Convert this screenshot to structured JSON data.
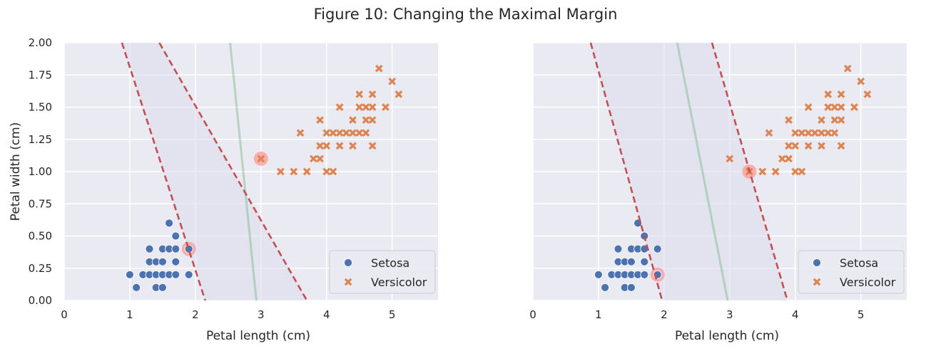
{
  "figure": {
    "title": "Figure 10: Changing the Maximal Margin",
    "colors": {
      "axes_bg": "#eaeaf2",
      "grid": "#ffffff",
      "setosa": "#4c72b0",
      "versicolor": "#dd8452",
      "margin_line": "#c44e52",
      "decision_line": "#55a868",
      "support_vector_ring": "#ff9896"
    }
  },
  "chart_data": [
    {
      "type": "scatter",
      "xlabel": "Petal length (cm)",
      "ylabel": "Petal width (cm)",
      "xlim": [
        0,
        5.7
      ],
      "ylim": [
        0,
        2.0
      ],
      "xticks": [
        "0",
        "1",
        "2",
        "3",
        "4",
        "5"
      ],
      "yticks": [
        "0.00",
        "0.25",
        "0.50",
        "0.75",
        "1.00",
        "1.25",
        "1.50",
        "1.75",
        "2.00"
      ],
      "grid": true,
      "legend_position": "lower-right",
      "legend": [
        "Setosa",
        "Versicolor"
      ],
      "series": [
        {
          "name": "Setosa",
          "marker": "circle",
          "points": [
            [
              1.0,
              0.2
            ],
            [
              1.1,
              0.1
            ],
            [
              1.2,
              0.2
            ],
            [
              1.3,
              0.2
            ],
            [
              1.3,
              0.3
            ],
            [
              1.3,
              0.4
            ],
            [
              1.4,
              0.1
            ],
            [
              1.4,
              0.2
            ],
            [
              1.4,
              0.3
            ],
            [
              1.5,
              0.1
            ],
            [
              1.5,
              0.2
            ],
            [
              1.5,
              0.3
            ],
            [
              1.5,
              0.4
            ],
            [
              1.6,
              0.2
            ],
            [
              1.6,
              0.4
            ],
            [
              1.6,
              0.6
            ],
            [
              1.7,
              0.2
            ],
            [
              1.7,
              0.3
            ],
            [
              1.7,
              0.4
            ],
            [
              1.7,
              0.5
            ],
            [
              1.9,
              0.2
            ],
            [
              1.9,
              0.4
            ]
          ]
        },
        {
          "name": "Versicolor",
          "marker": "x",
          "points": [
            [
              3.0,
              1.1
            ],
            [
              3.3,
              1.0
            ],
            [
              3.5,
              1.0
            ],
            [
              3.6,
              1.3
            ],
            [
              3.7,
              1.0
            ],
            [
              3.8,
              1.1
            ],
            [
              3.9,
              1.1
            ],
            [
              3.9,
              1.2
            ],
            [
              3.9,
              1.4
            ],
            [
              4.0,
              1.0
            ],
            [
              4.0,
              1.2
            ],
            [
              4.0,
              1.3
            ],
            [
              4.1,
              1.0
            ],
            [
              4.1,
              1.3
            ],
            [
              4.2,
              1.2
            ],
            [
              4.2,
              1.3
            ],
            [
              4.2,
              1.5
            ],
            [
              4.3,
              1.3
            ],
            [
              4.4,
              1.2
            ],
            [
              4.4,
              1.3
            ],
            [
              4.4,
              1.4
            ],
            [
              4.5,
              1.3
            ],
            [
              4.5,
              1.5
            ],
            [
              4.5,
              1.6
            ],
            [
              4.6,
              1.3
            ],
            [
              4.6,
              1.4
            ],
            [
              4.6,
              1.5
            ],
            [
              4.7,
              1.2
            ],
            [
              4.7,
              1.4
            ],
            [
              4.7,
              1.5
            ],
            [
              4.7,
              1.6
            ],
            [
              4.8,
              1.8
            ],
            [
              4.9,
              1.5
            ],
            [
              5.0,
              1.7
            ],
            [
              5.1,
              1.6
            ]
          ]
        }
      ],
      "support_vectors": [
        [
          1.9,
          0.4
        ],
        [
          3.0,
          1.1
        ]
      ],
      "decision_boundary": [
        [
          2.53,
          2.0
        ],
        [
          2.93,
          0.0
        ]
      ],
      "margin_lower": [
        [
          0.88,
          2.0
        ],
        [
          2.15,
          0.0
        ]
      ],
      "margin_upper": [
        [
          1.45,
          2.0
        ],
        [
          3.7,
          0.0
        ]
      ]
    },
    {
      "type": "scatter",
      "xlabel": "Petal length (cm)",
      "ylabel": "",
      "xlim": [
        0,
        5.7
      ],
      "ylim": [
        0,
        2.0
      ],
      "xticks": [
        "0",
        "1",
        "2",
        "3",
        "4",
        "5"
      ],
      "grid": true,
      "legend_position": "lower-right",
      "legend": [
        "Setosa",
        "Versicolor"
      ],
      "series": [
        {
          "name": "Setosa",
          "marker": "circle",
          "points": [
            [
              1.0,
              0.2
            ],
            [
              1.1,
              0.1
            ],
            [
              1.2,
              0.2
            ],
            [
              1.3,
              0.2
            ],
            [
              1.3,
              0.3
            ],
            [
              1.3,
              0.4
            ],
            [
              1.4,
              0.1
            ],
            [
              1.4,
              0.2
            ],
            [
              1.4,
              0.3
            ],
            [
              1.5,
              0.1
            ],
            [
              1.5,
              0.2
            ],
            [
              1.5,
              0.3
            ],
            [
              1.5,
              0.4
            ],
            [
              1.6,
              0.2
            ],
            [
              1.6,
              0.4
            ],
            [
              1.6,
              0.6
            ],
            [
              1.7,
              0.2
            ],
            [
              1.7,
              0.3
            ],
            [
              1.7,
              0.4
            ],
            [
              1.7,
              0.5
            ],
            [
              1.9,
              0.2
            ],
            [
              1.9,
              0.4
            ]
          ]
        },
        {
          "name": "Versicolor",
          "marker": "x",
          "points": [
            [
              3.0,
              1.1
            ],
            [
              3.3,
              1.0
            ],
            [
              3.5,
              1.0
            ],
            [
              3.6,
              1.3
            ],
            [
              3.7,
              1.0
            ],
            [
              3.8,
              1.1
            ],
            [
              3.9,
              1.1
            ],
            [
              3.9,
              1.2
            ],
            [
              3.9,
              1.4
            ],
            [
              4.0,
              1.0
            ],
            [
              4.0,
              1.2
            ],
            [
              4.0,
              1.3
            ],
            [
              4.1,
              1.0
            ],
            [
              4.1,
              1.3
            ],
            [
              4.2,
              1.2
            ],
            [
              4.2,
              1.3
            ],
            [
              4.2,
              1.5
            ],
            [
              4.3,
              1.3
            ],
            [
              4.4,
              1.2
            ],
            [
              4.4,
              1.3
            ],
            [
              4.4,
              1.4
            ],
            [
              4.5,
              1.3
            ],
            [
              4.5,
              1.5
            ],
            [
              4.5,
              1.6
            ],
            [
              4.6,
              1.3
            ],
            [
              4.6,
              1.4
            ],
            [
              4.6,
              1.5
            ],
            [
              4.7,
              1.2
            ],
            [
              4.7,
              1.4
            ],
            [
              4.7,
              1.5
            ],
            [
              4.7,
              1.6
            ],
            [
              4.8,
              1.8
            ],
            [
              4.9,
              1.5
            ],
            [
              5.0,
              1.7
            ],
            [
              5.1,
              1.6
            ]
          ]
        }
      ],
      "support_vectors": [
        [
          1.9,
          0.2
        ],
        [
          3.3,
          1.0
        ]
      ],
      "decision_boundary": [
        [
          2.2,
          2.0
        ],
        [
          2.97,
          0.0
        ]
      ],
      "margin_lower": [
        [
          0.88,
          2.0
        ],
        [
          1.97,
          0.0
        ]
      ],
      "margin_upper": [
        [
          2.73,
          2.0
        ],
        [
          3.88,
          0.0
        ]
      ]
    }
  ]
}
